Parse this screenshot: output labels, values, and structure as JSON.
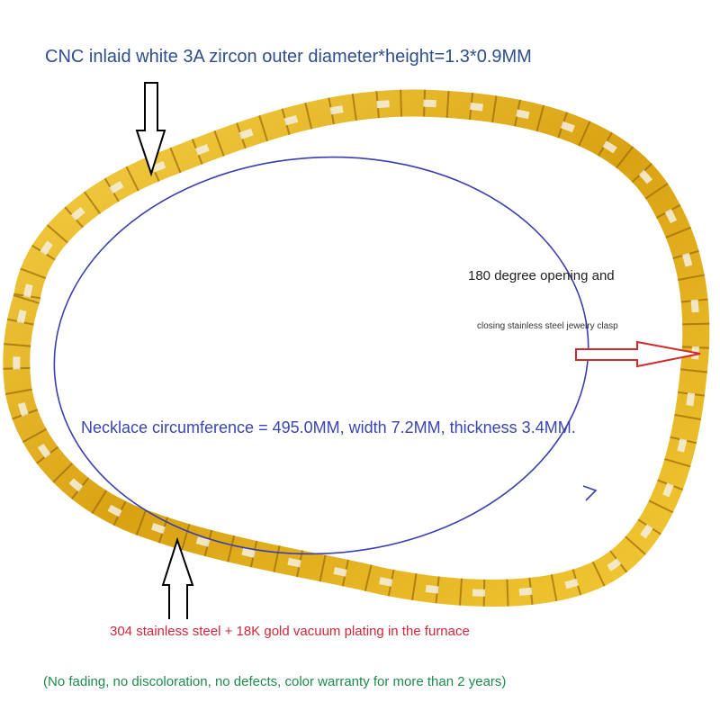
{
  "annotations": {
    "zircon": "CNC inlaid white 3A zircon outer diameter*height=1.3*0.9MM",
    "clasp_line1": "180 degree opening and",
    "clasp_line2": "closing stainless steel jewelry clasp",
    "circumference": "Necklace circumference = 495.0MM, width 7.2MM, thickness 3.4MM.",
    "material": "304 stainless steel + 18K gold vacuum plating in the furnace",
    "warranty": "(No fading, no discoloration, no defects, color warranty for more than 2 years)"
  },
  "colors": {
    "gold": "#e0b020",
    "zircon_text": "#2e4e8c",
    "ellipse": "#3a3fae",
    "material_text": "#d0283a",
    "warranty_text": "#1e8a4c",
    "clasp_arrow": "#d02a2a"
  }
}
